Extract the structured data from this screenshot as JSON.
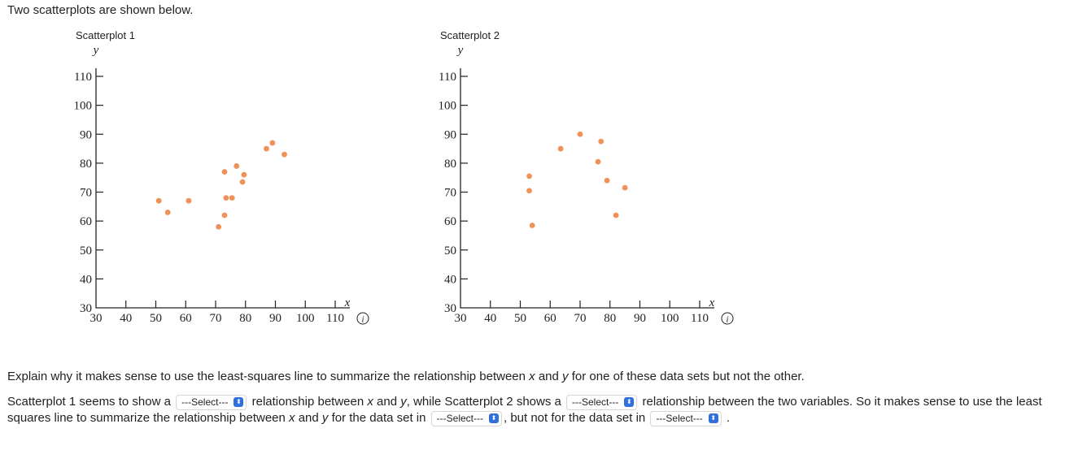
{
  "intro": "Two scatterplots are shown below.",
  "charts": [
    {
      "title": "Scatterplot 1",
      "chart_data": {
        "type": "scatter",
        "title": "Scatterplot 1",
        "xlabel": "x",
        "ylabel": "y",
        "xlim": [
          30,
          115
        ],
        "ylim": [
          30,
          110
        ],
        "xticks": [
          30,
          40,
          50,
          60,
          70,
          80,
          90,
          100,
          110
        ],
        "yticks": [
          30,
          40,
          50,
          60,
          70,
          80,
          90,
          100,
          110
        ],
        "color": "#f0915a",
        "points": [
          [
            51,
            67
          ],
          [
            54,
            63
          ],
          [
            61,
            67
          ],
          [
            71,
            58
          ],
          [
            73,
            62
          ],
          [
            73,
            77
          ],
          [
            73.5,
            68
          ],
          [
            75.5,
            68
          ],
          [
            77,
            79
          ],
          [
            79,
            73.5
          ],
          [
            79.5,
            76
          ],
          [
            87,
            85
          ],
          [
            89,
            87
          ],
          [
            93,
            83
          ]
        ]
      }
    },
    {
      "title": "Scatterplot 2",
      "chart_data": {
        "type": "scatter",
        "title": "Scatterplot 2",
        "xlabel": "x",
        "ylabel": "y",
        "xlim": [
          30,
          115
        ],
        "ylim": [
          30,
          110
        ],
        "xticks": [
          30,
          40,
          50,
          60,
          70,
          80,
          90,
          100,
          110
        ],
        "yticks": [
          30,
          40,
          50,
          60,
          70,
          80,
          90,
          100,
          110
        ],
        "color": "#f0915a",
        "points": [
          [
            53,
            75.5
          ],
          [
            53,
            70.5
          ],
          [
            54,
            58.5
          ],
          [
            63.5,
            85
          ],
          [
            70,
            90
          ],
          [
            76,
            80.5
          ],
          [
            77,
            87.5
          ],
          [
            79,
            74
          ],
          [
            82,
            62
          ],
          [
            85,
            71.5
          ]
        ]
      }
    }
  ],
  "info_icon_glyph": "i",
  "question": {
    "before_x": "Explain why it makes sense to use the least-squares line to summarize the relationship between ",
    "x": "x",
    "and": " and ",
    "y": "y",
    "after": " for one of these data sets but not the other."
  },
  "answer": {
    "t1": "Scatterplot 1 seems to show a ",
    "t2": " relationship between ",
    "x1": "x",
    "t3": " and ",
    "y1": "y",
    "t4": ", while Scatterplot 2 shows a ",
    "t5": " relationship between the two variables. So it makes sense to use the least squares line to summarize the relationship between ",
    "x2": "x",
    "t6": " and ",
    "y2": "y",
    "t7": " for the data set in ",
    "t8": ", but not for the data set in ",
    "t9": " .",
    "select_label": "---Select---",
    "select_chevron": "⬍"
  }
}
